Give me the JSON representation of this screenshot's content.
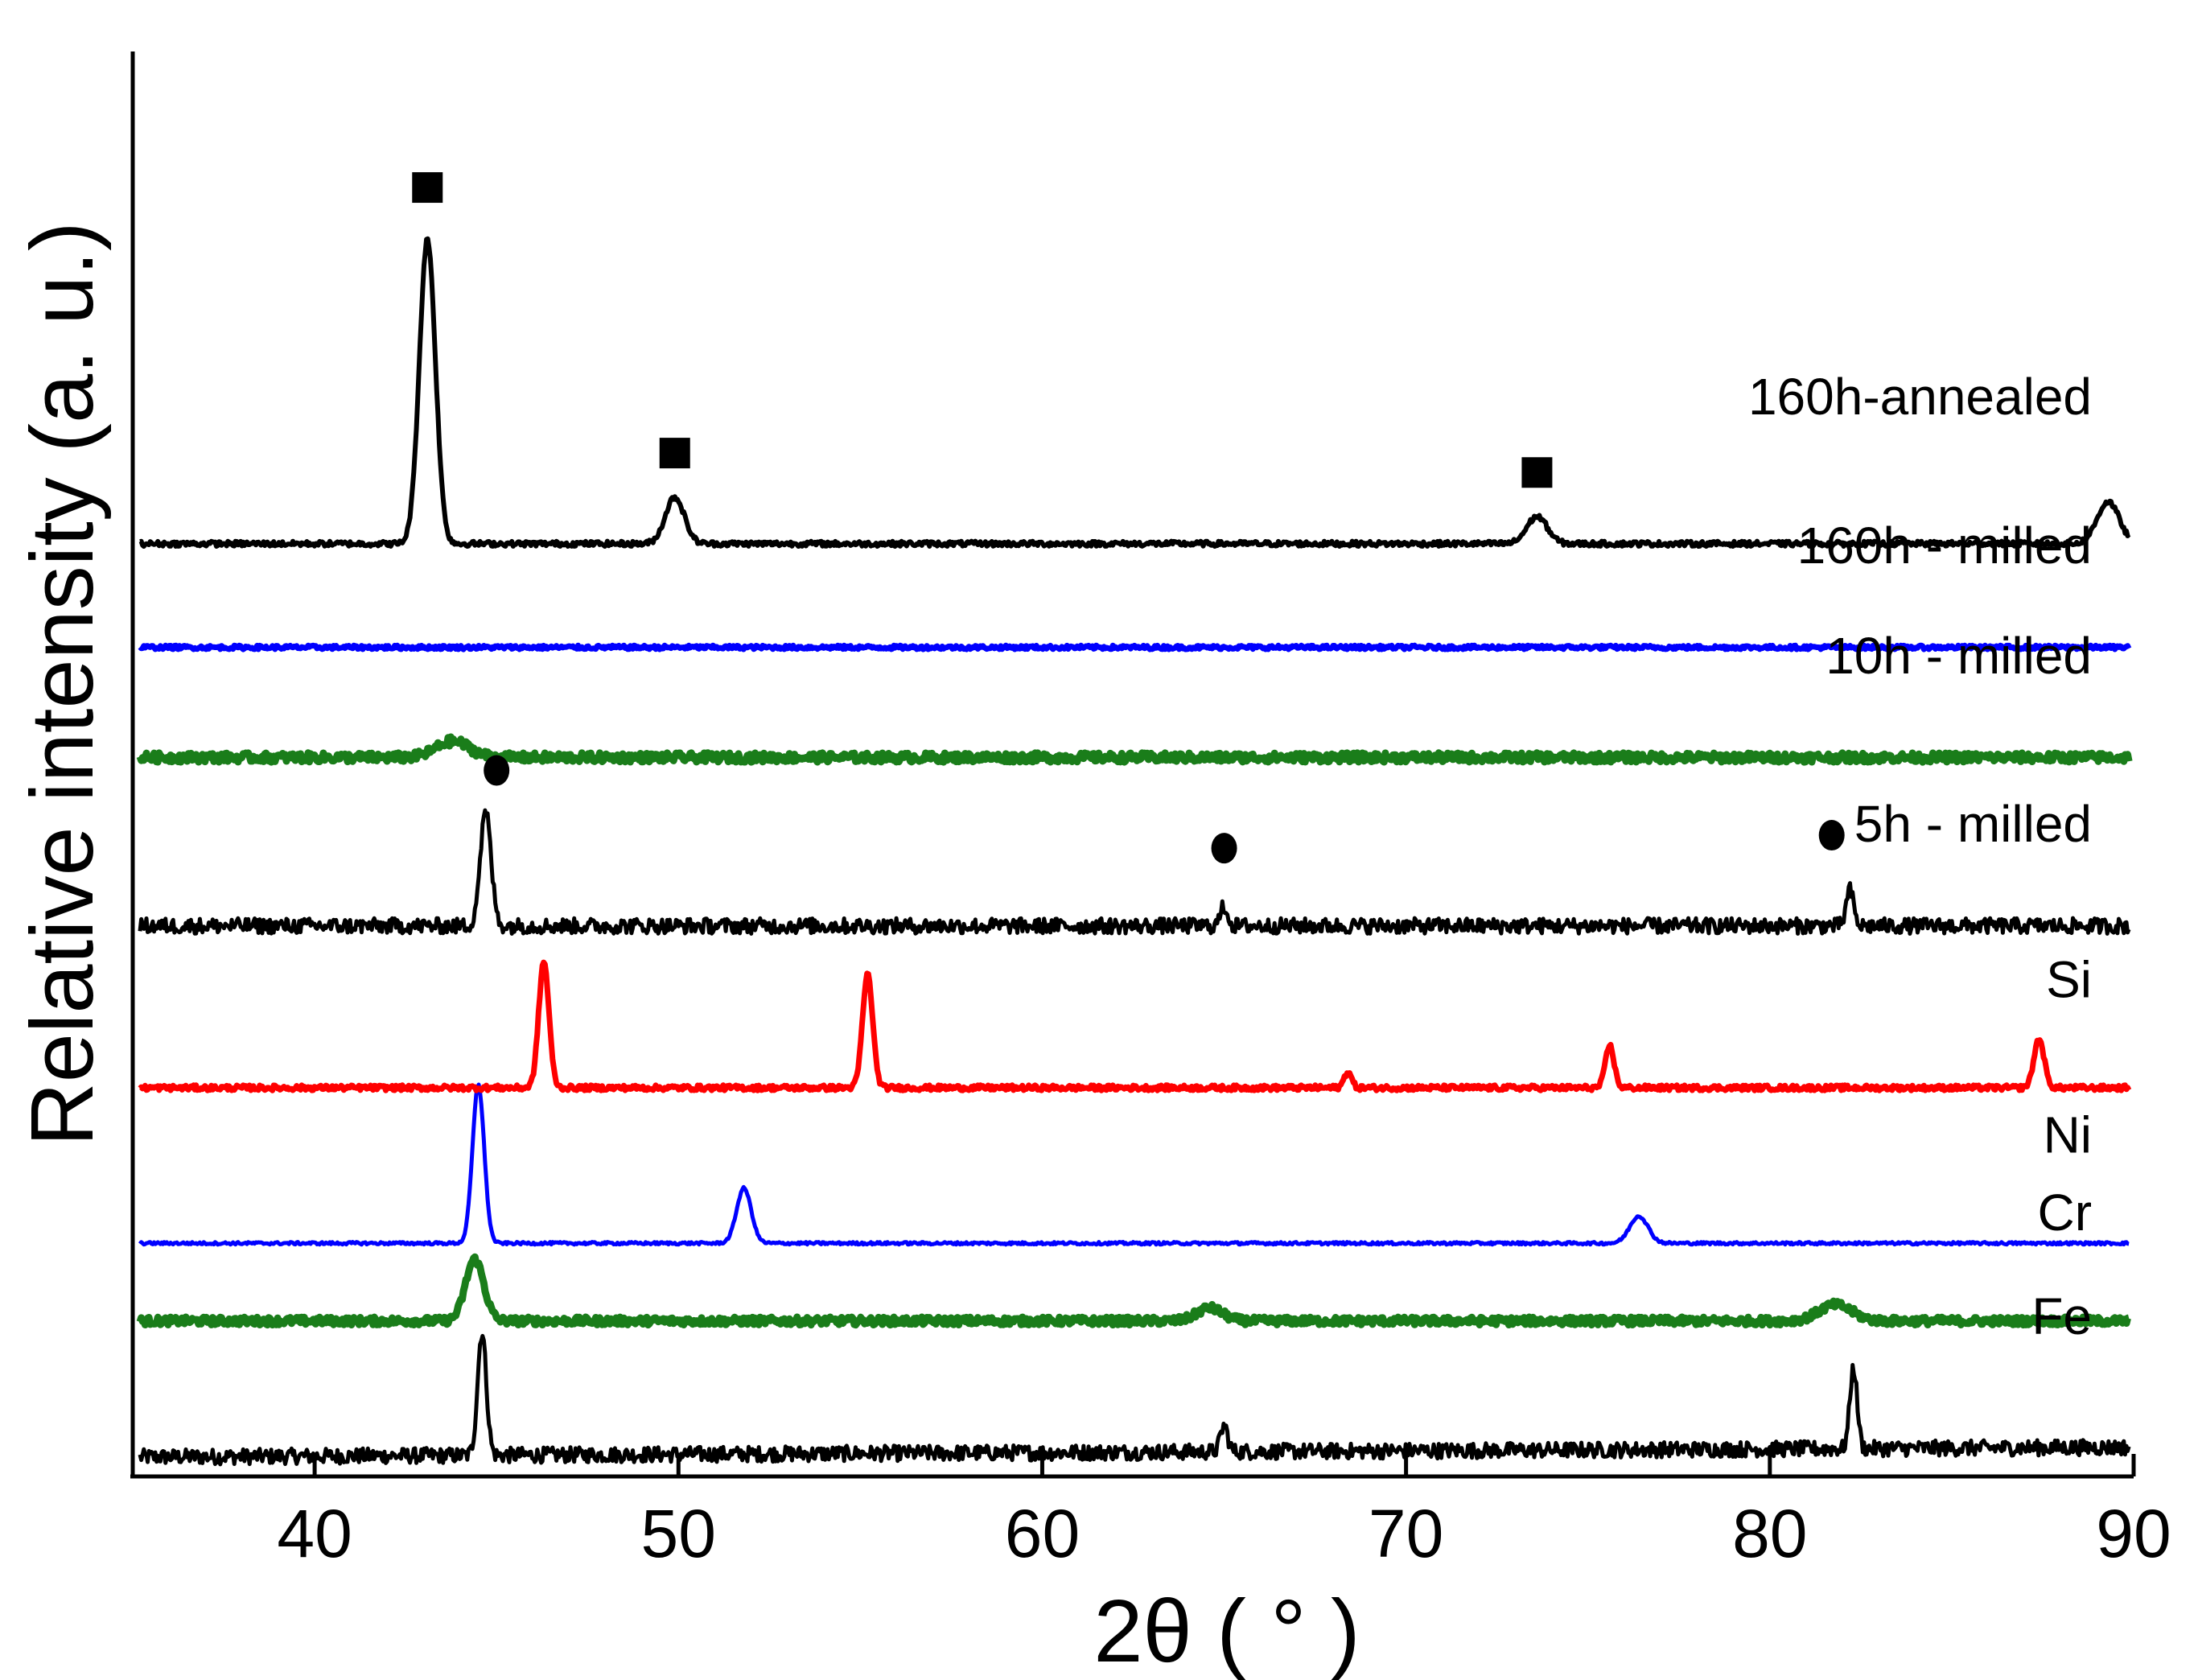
{
  "chart_data": {
    "type": "line",
    "title": "",
    "xlabel": "2θ ( ° )",
    "ylabel": "Relative intensity (a. u.)",
    "xlim": [
      35,
      90
    ],
    "ylim": [
      0,
      22
    ],
    "x_ticks": [
      40,
      50,
      60,
      70,
      80,
      90
    ],
    "y_ticks": [],
    "grid": false,
    "legend": "inline labels at right end of each trace",
    "series": [
      {
        "name": "Fe",
        "label": "Fe",
        "color": "#000000",
        "baseline": 0.3,
        "noise": 0.12,
        "linewidth": 5,
        "peaks": [
          {
            "x": 44.6,
            "h": 1.9,
            "w": 0.12
          },
          {
            "x": 65.0,
            "h": 0.4,
            "w": 0.1
          },
          {
            "x": 82.3,
            "h": 1.25,
            "w": 0.1
          }
        ],
        "slope": 0.15
      },
      {
        "name": "Cr",
        "label": "Cr",
        "color": "#1a7d1a",
        "baseline": 2.4,
        "noise": 0.06,
        "linewidth": 9,
        "peaks": [
          {
            "x": 44.4,
            "h": 0.95,
            "w": 0.25
          },
          {
            "x": 64.6,
            "h": 0.2,
            "w": 0.35
          },
          {
            "x": 81.8,
            "h": 0.25,
            "w": 0.45
          }
        ],
        "slope": 0
      },
      {
        "name": "Ni",
        "label": "Ni",
        "color": "#0000ff",
        "baseline": 3.6,
        "noise": 0.02,
        "linewidth": 5,
        "peaks": [
          {
            "x": 44.5,
            "h": 2.45,
            "w": 0.16
          },
          {
            "x": 51.8,
            "h": 0.85,
            "w": 0.2
          },
          {
            "x": 76.4,
            "h": 0.42,
            "w": 0.25
          }
        ],
        "slope": 0
      },
      {
        "name": "Si",
        "label": "Si",
        "color": "#ff0000",
        "baseline": 6.0,
        "noise": 0.04,
        "linewidth": 7,
        "peaks": [
          {
            "x": 46.3,
            "h": 1.95,
            "w": 0.14
          },
          {
            "x": 55.2,
            "h": 1.75,
            "w": 0.14
          },
          {
            "x": 68.4,
            "h": 0.25,
            "w": 0.1
          },
          {
            "x": 75.6,
            "h": 0.65,
            "w": 0.12
          },
          {
            "x": 87.4,
            "h": 0.75,
            "w": 0.14
          }
        ],
        "slope": 0
      },
      {
        "name": "5h - milled",
        "label": "5h - milled",
        "color": "#000000",
        "baseline": 8.5,
        "noise": 0.12,
        "linewidth": 5,
        "peaks": [
          {
            "x": 44.7,
            "h": 1.75,
            "w": 0.15
          },
          {
            "x": 65.0,
            "h": 0.3,
            "w": 0.1
          },
          {
            "x": 82.2,
            "h": 0.55,
            "w": 0.1
          }
        ],
        "slope": 0
      },
      {
        "name": "10h - milled",
        "label": "10h - milled",
        "color": "#1a7d1a",
        "baseline": 11.1,
        "noise": 0.07,
        "linewidth": 9,
        "peaks": [
          {
            "x": 43.8,
            "h": 0.25,
            "w": 0.45
          }
        ],
        "slope": 0
      },
      {
        "name": "160h - milled",
        "label": "160h - milled",
        "color": "#0000ff",
        "baseline": 12.8,
        "noise": 0.03,
        "linewidth": 7,
        "peaks": [],
        "slope": 0
      },
      {
        "name": "160h-annealed",
        "label": "160h-annealed",
        "color": "#000000",
        "baseline": 14.4,
        "noise": 0.04,
        "linewidth": 6,
        "peaks": [
          {
            "x": 43.1,
            "h": 4.7,
            "w": 0.22
          },
          {
            "x": 49.9,
            "h": 0.72,
            "w": 0.26
          },
          {
            "x": 73.6,
            "h": 0.42,
            "w": 0.28
          },
          {
            "x": 89.3,
            "h": 0.65,
            "w": 0.3
          }
        ],
        "slope": 0
      }
    ],
    "annotations": [
      {
        "marker": "square",
        "x": 43.1,
        "y": 19.9,
        "meaning": "phase peak marker"
      },
      {
        "marker": "square",
        "x": 49.9,
        "y": 15.8,
        "meaning": "phase peak marker"
      },
      {
        "marker": "square",
        "x": 73.6,
        "y": 15.5,
        "meaning": "phase peak marker"
      },
      {
        "marker": "circle",
        "x": 45.0,
        "y": 10.9,
        "meaning": "phase peak marker"
      },
      {
        "marker": "circle",
        "x": 65.0,
        "y": 9.7,
        "meaning": "phase peak marker"
      },
      {
        "marker": "circle",
        "x": 81.7,
        "y": 9.9,
        "meaning": "phase peak marker"
      }
    ],
    "colors": {
      "axes": "#000000",
      "background": "#ffffff"
    }
  }
}
